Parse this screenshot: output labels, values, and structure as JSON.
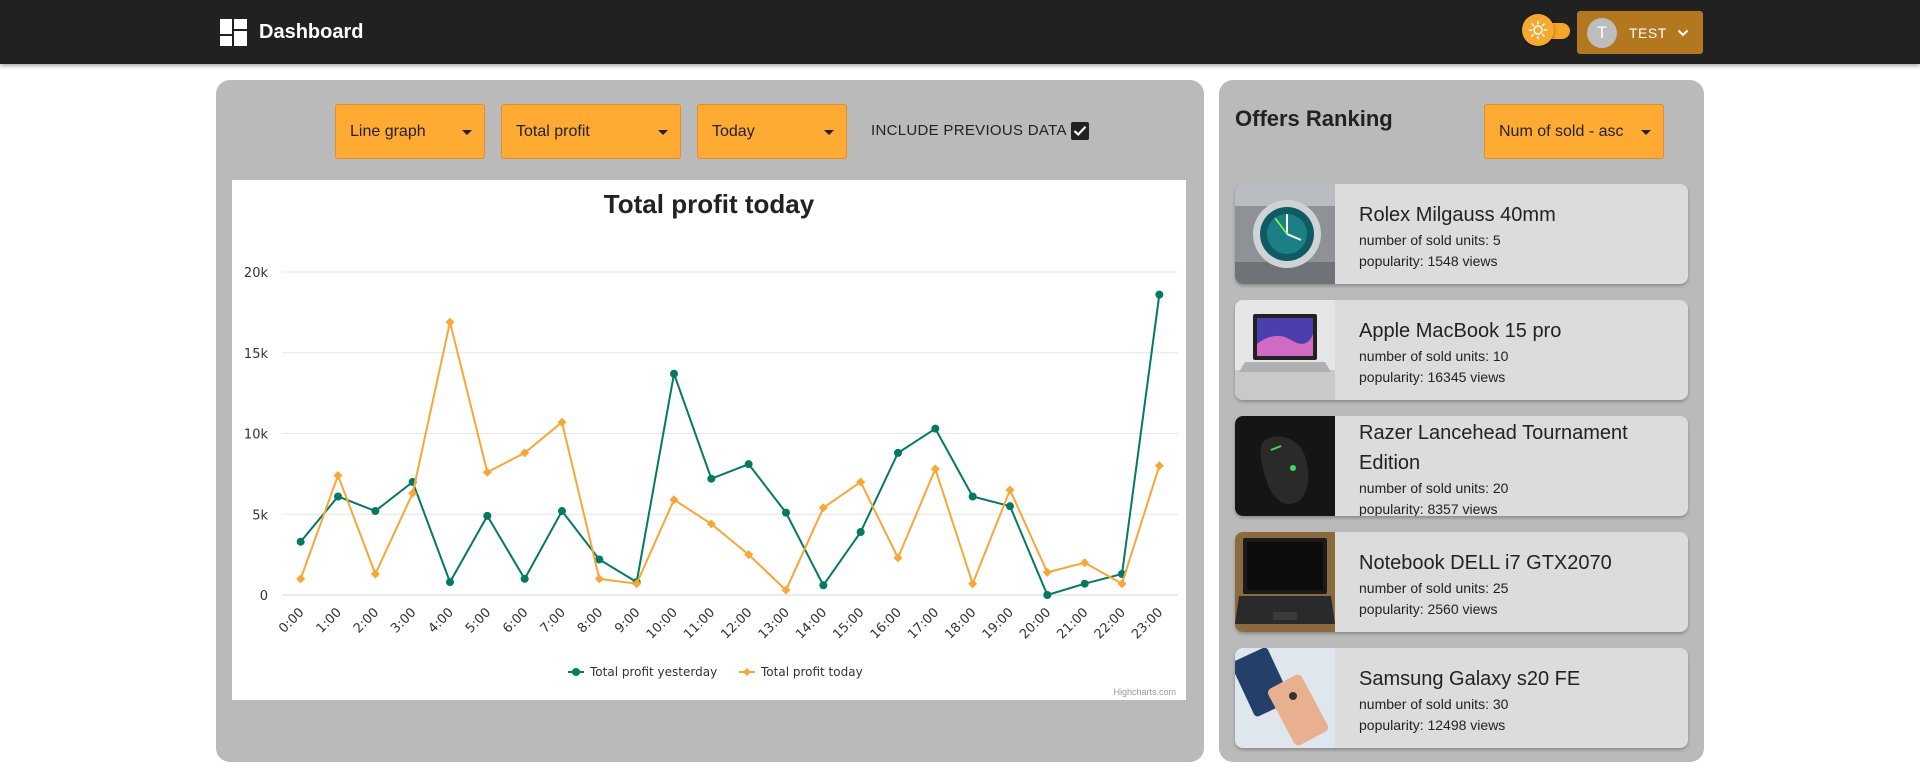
{
  "header": {
    "title": "Dashboard",
    "user_initial": "T",
    "user_name": "TEST"
  },
  "controls": {
    "graph_type": "Line graph",
    "metric": "Total profit",
    "period": "Today",
    "include_previous_label": "INCLUDE PREVIOUS DATA",
    "include_previous_checked": true
  },
  "ranking": {
    "title": "Offers Ranking",
    "sort": "Num of sold - asc",
    "offers": [
      {
        "title": "Rolex Milgauss 40mm",
        "sold": "number of sold units: 5",
        "popularity": "popularity: 1548 views"
      },
      {
        "title": "Apple MacBook 15 pro",
        "sold": "number of sold units: 10",
        "popularity": "popularity: 16345 views"
      },
      {
        "title": "Razer Lancehead Tournament Edition",
        "sold": "number of sold units: 20",
        "popularity": "popularity: 8357 views"
      },
      {
        "title": "Notebook DELL i7 GTX2070",
        "sold": "number of sold units: 25",
        "popularity": "popularity: 2560 views"
      },
      {
        "title": "Samsung Galaxy s20 FE",
        "sold": "number of sold units: 30",
        "popularity": "popularity: 12498 views"
      }
    ]
  },
  "chart_data": {
    "type": "line",
    "title": "Total profit today",
    "credit": "Highcharts.com",
    "categories": [
      "0:00",
      "1:00",
      "2:00",
      "3:00",
      "4:00",
      "5:00",
      "6:00",
      "7:00",
      "8:00",
      "9:00",
      "10:00",
      "11:00",
      "12:00",
      "13:00",
      "14:00",
      "15:00",
      "16:00",
      "17:00",
      "18:00",
      "19:00",
      "20:00",
      "21:00",
      "22:00",
      "23:00"
    ],
    "y_ticks": [
      0,
      5000,
      10000,
      15000,
      20000
    ],
    "y_tick_labels": [
      "0",
      "5k",
      "10k",
      "15k",
      "20k"
    ],
    "ylim": [
      0,
      20000
    ],
    "grid": true,
    "legend_position": "bottom-center",
    "series": [
      {
        "name": "Total profit yesterday",
        "color": "#047a62",
        "marker": "circle",
        "values": [
          3300,
          6100,
          5200,
          7000,
          800,
          4900,
          1000,
          5200,
          2200,
          800,
          13700,
          7200,
          8100,
          5100,
          600,
          3900,
          8800,
          10300,
          6100,
          5500,
          0,
          700,
          1300,
          18600
        ]
      },
      {
        "name": "Total profit today",
        "color": "#f7a738",
        "marker": "diamond",
        "values": [
          1000,
          7400,
          1300,
          6300,
          16900,
          7600,
          8800,
          10700,
          1000,
          700,
          5900,
          4400,
          2500,
          300,
          5400,
          7000,
          2300,
          7800,
          700,
          6500,
          1400,
          2000,
          700,
          8000
        ]
      }
    ]
  }
}
